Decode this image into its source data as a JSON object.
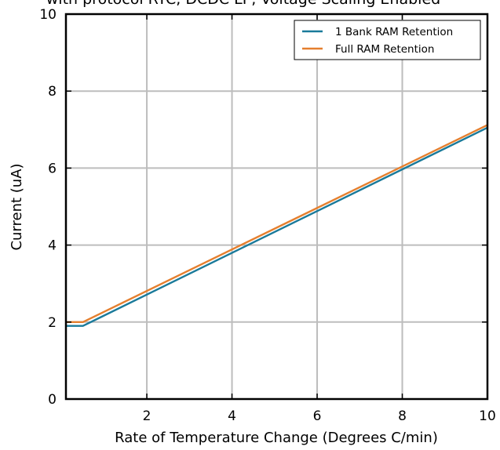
{
  "chart_data": {
    "type": "line",
    "title": "with protocol RTC, DCDC LP, Voltage Scaling Enabled",
    "xlabel": "Rate of Temperature Change (Degrees C/min)",
    "ylabel": "Current (uA)",
    "xlim": [
      0.1,
      10
    ],
    "ylim": [
      0,
      10
    ],
    "xticks": [
      "2",
      "4",
      "6",
      "8",
      "10"
    ],
    "yticks": [
      "0",
      "2",
      "4",
      "6",
      "8",
      "10"
    ],
    "grid": true,
    "legend_position": "top-right",
    "series": [
      {
        "name": "1 Bank RAM Retention",
        "color": "#1a7a9a",
        "x": [
          0.1,
          0.5,
          10
        ],
        "y": [
          1.9,
          1.9,
          7.05
        ]
      },
      {
        "name": "Full RAM Retention",
        "color": "#e57f2e",
        "x": [
          0.1,
          0.5,
          10
        ],
        "y": [
          2.0,
          2.0,
          7.12
        ]
      }
    ]
  }
}
